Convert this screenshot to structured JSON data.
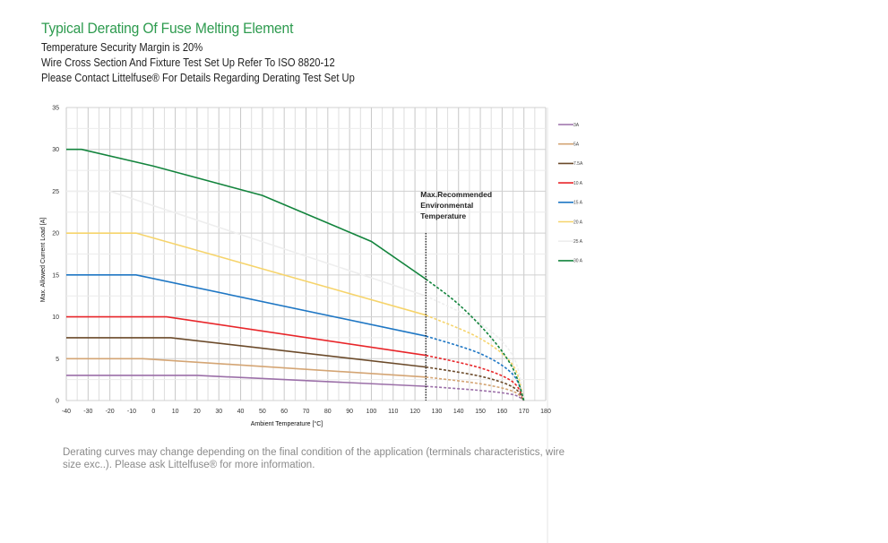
{
  "header": {
    "title": "Typical Derating Of Fuse Melting Element",
    "line1": "Temperature Security Margin is 20%",
    "line2": "Wire Cross Section And Fixture Test Set Up Refer To ISO 8820-12",
    "line3": "Please Contact Littelfuse® For Details Regarding Derating Test Set Up"
  },
  "footer": {
    "note": "Derating curves may change depending on the final condition of the application (terminals characteristics, wire size exc..). Please ask Littelfuse® for more information."
  },
  "chart_data": {
    "type": "line",
    "title": "",
    "xlabel": "Ambient Temperature [°C]",
    "ylabel": "Max. Allowed Current Load [A]",
    "xlim": [
      -40,
      180
    ],
    "ylim": [
      0,
      35
    ],
    "xticks": [
      "-40",
      "-30",
      "-20",
      "-10",
      "0",
      "10",
      "20",
      "30",
      "40",
      "50",
      "60",
      "70",
      "80",
      "90",
      "100",
      "110",
      "120",
      "130",
      "140",
      "150",
      "160",
      "170",
      "180"
    ],
    "yticks": [
      "0",
      "5",
      "10",
      "15",
      "20",
      "25",
      "30",
      "35"
    ],
    "grid": true,
    "legend_position": "right",
    "annotation": {
      "lines": [
        "Max.Recommended",
        "Environmental",
        "Temperature"
      ],
      "x": 125
    },
    "series": [
      {
        "name": "3A",
        "color": "#9b6fa8",
        "solid": [
          [
            -40,
            3
          ],
          [
            20,
            3
          ],
          [
            125,
            1.7
          ]
        ],
        "dashed": [
          [
            125,
            1.7
          ],
          [
            150,
            1.2
          ],
          [
            165,
            0.7
          ],
          [
            170,
            0
          ]
        ]
      },
      {
        "name": "5A",
        "color": "#d4a574",
        "solid": [
          [
            -40,
            5
          ],
          [
            -5,
            5
          ],
          [
            125,
            2.8
          ]
        ],
        "dashed": [
          [
            125,
            2.8
          ],
          [
            150,
            2.0
          ],
          [
            165,
            1.1
          ],
          [
            170,
            0
          ]
        ]
      },
      {
        "name": "7.5A",
        "color": "#6b4a2a",
        "solid": [
          [
            -40,
            7.5
          ],
          [
            8,
            7.5
          ],
          [
            125,
            4.0
          ]
        ],
        "dashed": [
          [
            125,
            4.0
          ],
          [
            150,
            2.9
          ],
          [
            165,
            1.6
          ],
          [
            170,
            0
          ]
        ]
      },
      {
        "name": "10 A",
        "color": "#e8262a",
        "solid": [
          [
            -40,
            10
          ],
          [
            6,
            10
          ],
          [
            125,
            5.4
          ]
        ],
        "dashed": [
          [
            125,
            5.4
          ],
          [
            150,
            3.9
          ],
          [
            165,
            2.2
          ],
          [
            170,
            0
          ]
        ]
      },
      {
        "name": "15 A",
        "color": "#1f77c4",
        "solid": [
          [
            -40,
            15
          ],
          [
            -8,
            15
          ],
          [
            125,
            7.7
          ]
        ],
        "dashed": [
          [
            125,
            7.7
          ],
          [
            150,
            5.6
          ],
          [
            165,
            3.1
          ],
          [
            170,
            0
          ]
        ]
      },
      {
        "name": "20 A",
        "color": "#f6d46b",
        "solid": [
          [
            -40,
            20
          ],
          [
            -8,
            20
          ],
          [
            125,
            10.2
          ]
        ],
        "dashed": [
          [
            125,
            10.2
          ],
          [
            150,
            7.4
          ],
          [
            165,
            4.2
          ],
          [
            170,
            0
          ]
        ]
      },
      {
        "name": "25 A",
        "color": "#eeeeee",
        "solid": [
          [
            -40,
            25
          ],
          [
            -20,
            25
          ],
          [
            125,
            12.5
          ]
        ],
        "dashed": [
          [
            125,
            12.5
          ],
          [
            150,
            9.2
          ],
          [
            165,
            5.3
          ],
          [
            170,
            0
          ]
        ]
      },
      {
        "name": "30 A",
        "color": "#13843d",
        "solid": [
          [
            -40,
            30
          ],
          [
            -33,
            30
          ],
          [
            0,
            28
          ],
          [
            50,
            24.5
          ],
          [
            100,
            19
          ],
          [
            125,
            14.5
          ]
        ],
        "dashed": [
          [
            125,
            14.5
          ],
          [
            140,
            11.5
          ],
          [
            155,
            7.5
          ],
          [
            165,
            3.8
          ],
          [
            170,
            0
          ]
        ]
      }
    ]
  }
}
